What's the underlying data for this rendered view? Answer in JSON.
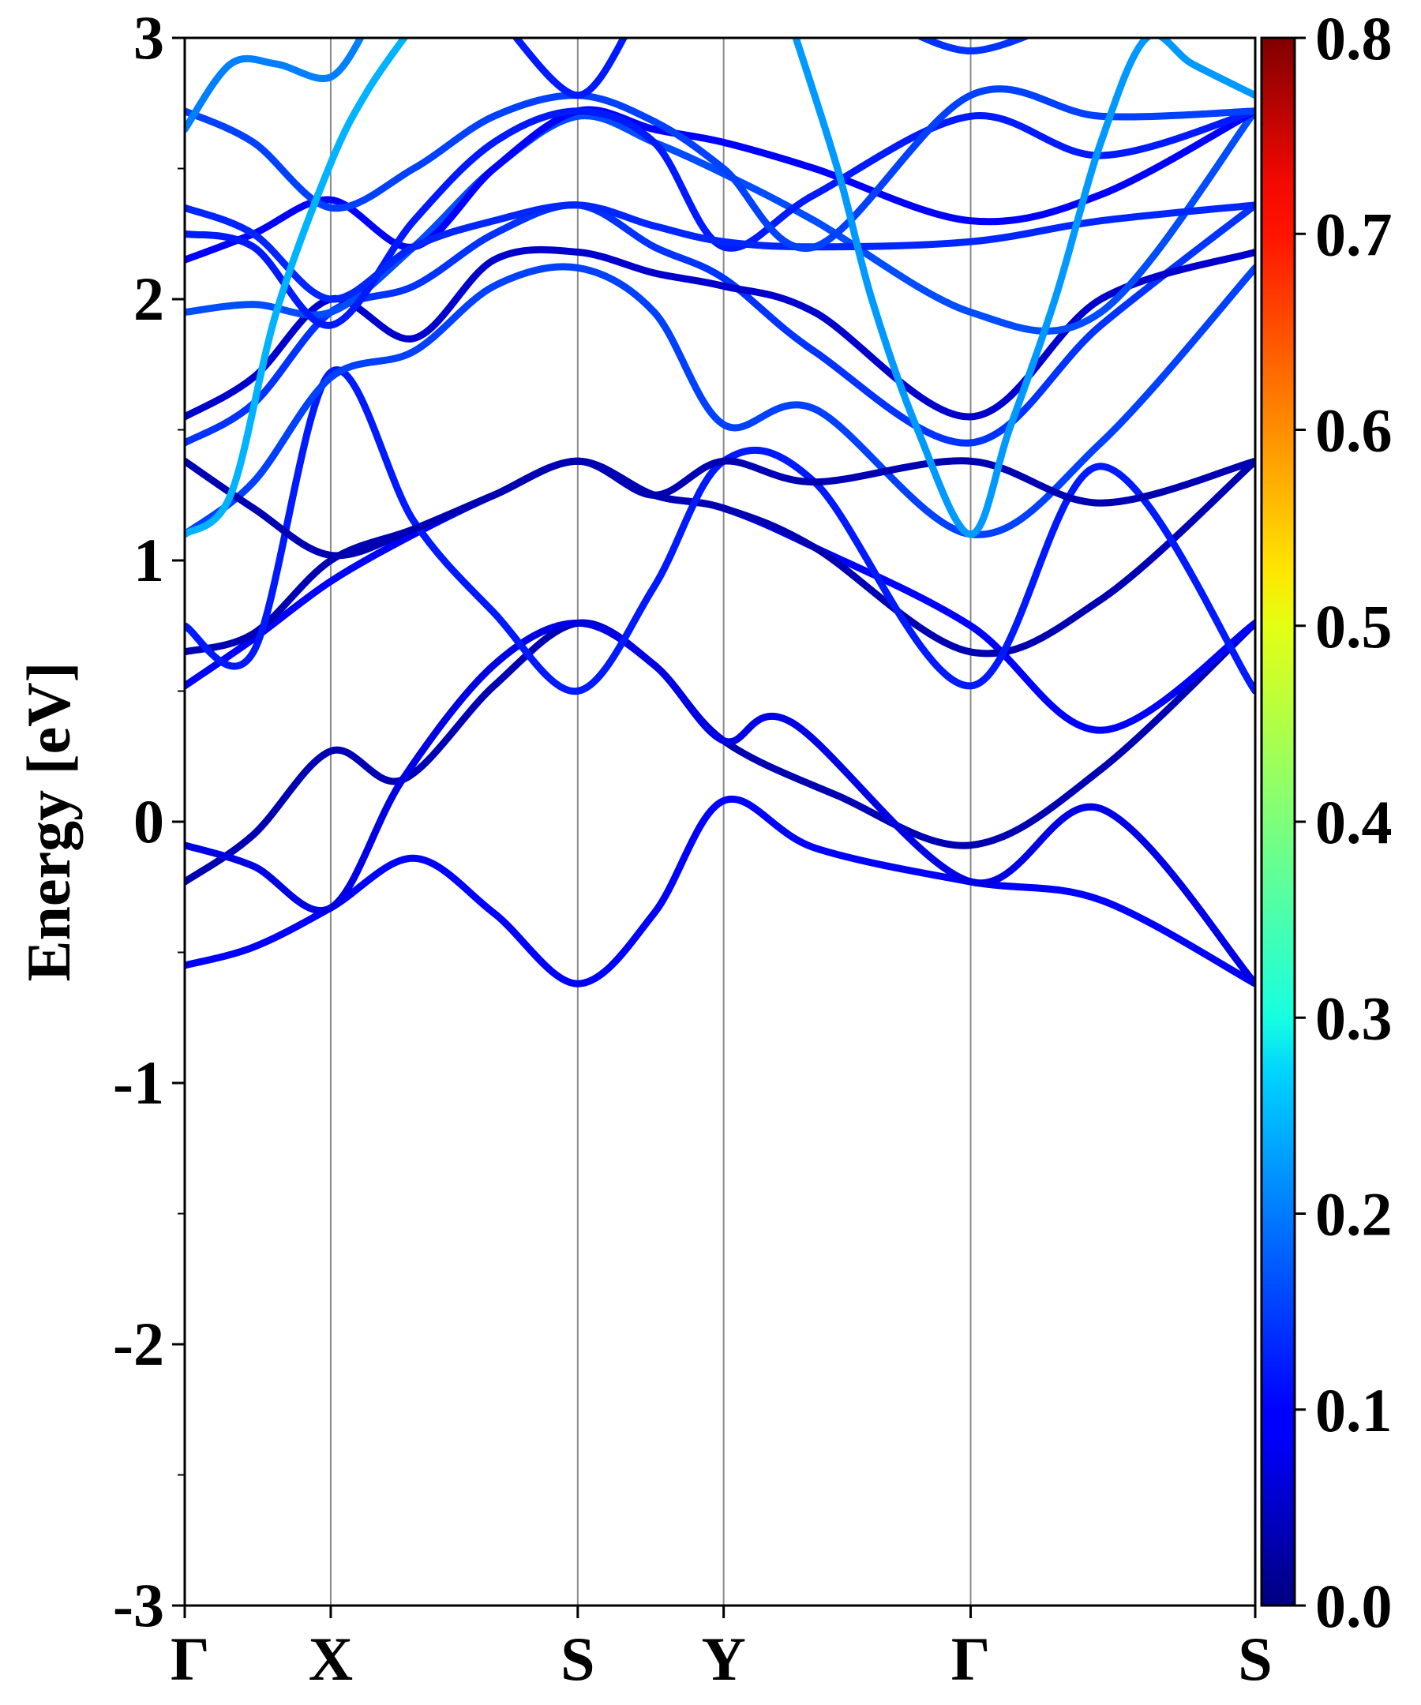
{
  "chart_data": {
    "type": "line",
    "title": "",
    "xlabel": "",
    "ylabel": "Energy [eV]",
    "ylim": [
      -3,
      3
    ],
    "yticks": [
      -3,
      -2,
      -1,
      0,
      1,
      2,
      3
    ],
    "yminor": [
      -2.5,
      -1.5,
      -0.5,
      0.5,
      1.5,
      2.5
    ],
    "kpath": [
      "Γ",
      "X",
      "S",
      "Y",
      "Γ",
      "S"
    ],
    "kpath_x": [
      0,
      0.1275,
      0.3432,
      0.4706,
      0.6863,
      0.9348
    ],
    "xlim": [
      0,
      0.9348
    ],
    "colorbar": {
      "label": "",
      "min": 0.0,
      "max": 0.8,
      "ticks": [
        "0.0",
        "0.1",
        "0.2",
        "0.3",
        "0.4",
        "0.5",
        "0.6",
        "0.7",
        "0.8"
      ],
      "colormap": "jet"
    },
    "bands": [
      {
        "points": [
          [
            0,
            -0.55
          ],
          [
            0.06,
            -0.48
          ],
          [
            0.1275,
            -0.33
          ],
          [
            0.2,
            -0.14
          ],
          [
            0.27,
            -0.35
          ],
          [
            0.3432,
            -0.62
          ],
          [
            0.41,
            -0.35
          ],
          [
            0.4706,
            0.08
          ],
          [
            0.55,
            -0.1
          ],
          [
            0.6863,
            -0.23
          ],
          [
            0.8,
            -0.3
          ],
          [
            0.9348,
            -0.62
          ]
        ],
        "weight": 0.1
      },
      {
        "points": [
          [
            0,
            -0.23
          ],
          [
            0.06,
            -0.05
          ],
          [
            0.1275,
            0.27
          ],
          [
            0.19,
            0.16
          ],
          [
            0.27,
            0.52
          ],
          [
            0.3432,
            0.76
          ],
          [
            0.41,
            0.6
          ],
          [
            0.4706,
            0.31
          ],
          [
            0.57,
            0.1
          ],
          [
            0.6863,
            -0.09
          ],
          [
            0.8,
            0.2
          ],
          [
            0.9348,
            0.76
          ]
        ],
        "weight": 0.04
      },
      {
        "points": [
          [
            0,
            -0.09
          ],
          [
            0.06,
            -0.17
          ],
          [
            0.1275,
            -0.33
          ],
          [
            0.19,
            0.16
          ],
          [
            0.27,
            0.6
          ],
          [
            0.3432,
            0.76
          ],
          [
            0.41,
            0.6
          ],
          [
            0.4706,
            0.31
          ],
          [
            0.53,
            0.38
          ],
          [
            0.6863,
            -0.23
          ],
          [
            0.8,
            0.05
          ],
          [
            0.9348,
            -0.62
          ]
        ],
        "weight": 0.08
      },
      {
        "points": [
          [
            0,
            0.52
          ],
          [
            0.06,
            0.7
          ],
          [
            0.1275,
            0.92
          ],
          [
            0.2,
            1.1
          ],
          [
            0.27,
            1.25
          ],
          [
            0.3432,
            1.38
          ],
          [
            0.41,
            1.25
          ],
          [
            0.4706,
            1.2
          ],
          [
            0.55,
            1.05
          ],
          [
            0.6863,
            0.75
          ],
          [
            0.8,
            0.35
          ],
          [
            0.9348,
            0.76
          ]
        ],
        "weight": 0.1
      },
      {
        "points": [
          [
            0,
            0.65
          ],
          [
            0.06,
            0.72
          ],
          [
            0.1275,
            1.0
          ],
          [
            0.2,
            1.12
          ],
          [
            0.27,
            1.25
          ],
          [
            0.3432,
            1.38
          ],
          [
            0.41,
            1.25
          ],
          [
            0.4706,
            1.2
          ],
          [
            0.55,
            1.05
          ],
          [
            0.6863,
            0.65
          ],
          [
            0.8,
            0.85
          ],
          [
            0.9348,
            1.38
          ]
        ],
        "weight": 0.04
      },
      {
        "points": [
          [
            0,
            0.75
          ],
          [
            0.06,
            0.65
          ],
          [
            0.1275,
            1.72
          ],
          [
            0.2,
            1.15
          ],
          [
            0.27,
            0.8
          ],
          [
            0.3432,
            0.5
          ],
          [
            0.41,
            0.9
          ],
          [
            0.4706,
            1.38
          ],
          [
            0.55,
            1.3
          ],
          [
            0.6863,
            0.52
          ],
          [
            0.8,
            1.36
          ],
          [
            0.9348,
            0.5
          ]
        ],
        "weight": 0.12
      },
      {
        "points": [
          [
            0,
            1.1
          ],
          [
            0.06,
            1.3
          ],
          [
            0.1275,
            1.7
          ],
          [
            0.2,
            1.8
          ],
          [
            0.27,
            2.05
          ],
          [
            0.3432,
            2.12
          ],
          [
            0.41,
            1.95
          ],
          [
            0.4706,
            1.52
          ],
          [
            0.55,
            1.58
          ],
          [
            0.6863,
            1.1
          ],
          [
            0.8,
            1.45
          ],
          [
            0.9348,
            2.12
          ]
        ],
        "weight": 0.15
      },
      {
        "points": [
          [
            0,
            1.38
          ],
          [
            0.06,
            1.2
          ],
          [
            0.1275,
            1.02
          ],
          [
            0.2,
            1.12
          ],
          [
            0.27,
            1.25
          ],
          [
            0.3432,
            1.38
          ],
          [
            0.41,
            1.25
          ],
          [
            0.4706,
            1.38
          ],
          [
            0.55,
            1.3
          ],
          [
            0.6863,
            1.38
          ],
          [
            0.8,
            1.22
          ],
          [
            0.9348,
            1.38
          ]
        ],
        "weight": 0.04
      },
      {
        "points": [
          [
            0,
            1.45
          ],
          [
            0.06,
            1.6
          ],
          [
            0.1275,
            1.95
          ],
          [
            0.2,
            2.05
          ],
          [
            0.27,
            2.25
          ],
          [
            0.3432,
            2.36
          ],
          [
            0.41,
            2.2
          ],
          [
            0.4706,
            2.08
          ],
          [
            0.55,
            1.8
          ],
          [
            0.6863,
            1.45
          ],
          [
            0.8,
            1.9
          ],
          [
            0.9348,
            2.36
          ]
        ],
        "weight": 0.14
      },
      {
        "points": [
          [
            0,
            1.55
          ],
          [
            0.06,
            1.7
          ],
          [
            0.1275,
            2.0
          ],
          [
            0.2,
            1.85
          ],
          [
            0.27,
            2.15
          ],
          [
            0.3432,
            2.18
          ],
          [
            0.41,
            2.1
          ],
          [
            0.4706,
            2.05
          ],
          [
            0.55,
            1.95
          ],
          [
            0.6863,
            1.55
          ],
          [
            0.8,
            2.0
          ],
          [
            0.9348,
            2.18
          ]
        ],
        "weight": 0.06
      },
      {
        "points": [
          [
            0,
            1.95
          ],
          [
            0.06,
            1.98
          ],
          [
            0.1275,
            1.95
          ],
          [
            0.2,
            2.2
          ],
          [
            0.27,
            2.5
          ],
          [
            0.3432,
            2.7
          ],
          [
            0.41,
            2.6
          ],
          [
            0.4706,
            2.48
          ],
          [
            0.55,
            2.3
          ],
          [
            0.6863,
            1.95
          ],
          [
            0.8,
            1.95
          ],
          [
            0.9348,
            2.72
          ]
        ],
        "weight": 0.16
      },
      {
        "points": [
          [
            0,
            2.15
          ],
          [
            0.06,
            2.25
          ],
          [
            0.1275,
            2.38
          ],
          [
            0.2,
            2.2
          ],
          [
            0.27,
            2.5
          ],
          [
            0.3432,
            2.72
          ],
          [
            0.41,
            2.65
          ],
          [
            0.4706,
            2.6
          ],
          [
            0.55,
            2.5
          ],
          [
            0.6863,
            2.3
          ],
          [
            0.8,
            2.4
          ],
          [
            0.9348,
            2.72
          ]
        ],
        "weight": 0.1
      },
      {
        "points": [
          [
            0,
            2.25
          ],
          [
            0.06,
            2.2
          ],
          [
            0.1275,
            1.9
          ],
          [
            0.2,
            2.3
          ],
          [
            0.27,
            2.6
          ],
          [
            0.3432,
            2.72
          ],
          [
            0.41,
            2.6
          ],
          [
            0.4706,
            2.2
          ],
          [
            0.55,
            2.4
          ],
          [
            0.6863,
            2.7
          ],
          [
            0.8,
            2.55
          ],
          [
            0.9348,
            2.72
          ]
        ],
        "weight": 0.12
      },
      {
        "points": [
          [
            0,
            2.35
          ],
          [
            0.06,
            2.25
          ],
          [
            0.1275,
            2.0
          ],
          [
            0.2,
            2.2
          ],
          [
            0.27,
            2.3
          ],
          [
            0.3432,
            2.36
          ],
          [
            0.41,
            2.28
          ],
          [
            0.4706,
            2.22
          ],
          [
            0.55,
            2.2
          ],
          [
            0.6863,
            2.22
          ],
          [
            0.8,
            2.3
          ],
          [
            0.9348,
            2.36
          ]
        ],
        "weight": 0.13
      },
      {
        "points": [
          [
            0,
            2.72
          ],
          [
            0.06,
            2.6
          ],
          [
            0.1275,
            2.35
          ],
          [
            0.2,
            2.5
          ],
          [
            0.27,
            2.7
          ],
          [
            0.3432,
            2.78
          ],
          [
            0.41,
            2.68
          ],
          [
            0.4706,
            2.5
          ],
          [
            0.55,
            2.2
          ],
          [
            0.6863,
            2.78
          ],
          [
            0.8,
            2.7
          ],
          [
            0.9348,
            2.72
          ]
        ],
        "weight": 0.15
      },
      {
        "points": [
          [
            0,
            1.1
          ],
          [
            0.04,
            1.25
          ],
          [
            0.08,
            1.95
          ],
          [
            0.1275,
            2.52
          ],
          [
            0.16,
            2.8
          ],
          [
            0.2,
            3.05
          ]
        ],
        "weight": 0.24
      },
      {
        "points": [
          [
            0,
            2.65
          ],
          [
            0.04,
            2.9
          ],
          [
            0.08,
            2.9
          ],
          [
            0.1275,
            2.85
          ],
          [
            0.16,
            3.05
          ]
        ],
        "weight": 0.2
      },
      {
        "points": [
          [
            0.28,
            3.05
          ],
          [
            0.3432,
            2.78
          ],
          [
            0.39,
            3.05
          ]
        ],
        "weight": 0.12
      },
      {
        "points": [
          [
            0.53,
            3.05
          ],
          [
            0.57,
            2.5
          ],
          [
            0.6,
            2.0
          ],
          [
            0.64,
            1.5
          ],
          [
            0.6863,
            1.1
          ],
          [
            0.72,
            1.5
          ],
          [
            0.76,
            2.0
          ],
          [
            0.8,
            2.6
          ],
          [
            0.84,
            3.0
          ],
          [
            0.88,
            2.9
          ],
          [
            0.9348,
            2.78
          ]
        ],
        "weight": 0.22
      },
      {
        "points": [
          [
            0.62,
            3.05
          ],
          [
            0.6863,
            2.95
          ],
          [
            0.76,
            3.05
          ]
        ],
        "weight": 0.14
      }
    ]
  }
}
